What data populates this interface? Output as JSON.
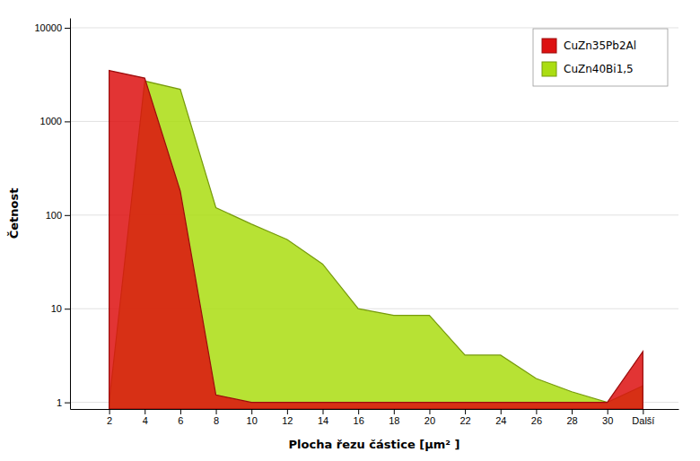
{
  "chart_data": {
    "type": "area",
    "xlabel": "Plocha řezu částice [μm² ]",
    "ylabel": "Četnost",
    "x": [
      2,
      4,
      6,
      8,
      10,
      12,
      14,
      16,
      18,
      20,
      22,
      24,
      26,
      28,
      30,
      32
    ],
    "series": [
      {
        "name": "CuZn35Pb2Al",
        "color": "#dd1111",
        "values": [
          3500,
          2900,
          180,
          1.2,
          1.0,
          1.0,
          1.0,
          1.0,
          1.0,
          1.0,
          1.0,
          1.0,
          1.0,
          1.0,
          1.0,
          3.5
        ]
      },
      {
        "name": "CuZn40Bi1,5",
        "color": "#aadd11",
        "values": [
          1.0,
          2700,
          2200,
          120,
          80,
          55,
          30,
          10,
          8.5,
          8.5,
          3.2,
          3.2,
          1.8,
          1.3,
          1.0,
          1.5
        ]
      }
    ],
    "xlim": [
      -0.2,
      34
    ],
    "xticks": [
      2,
      4,
      6,
      8,
      10,
      12,
      14,
      16,
      18,
      20,
      22,
      24,
      26,
      28,
      30,
      {
        "value": 32,
        "label": "Další"
      }
    ],
    "ylim": [
      0.85,
      12735.03
    ],
    "yticks": [
      1,
      10,
      100,
      1000,
      10000
    ],
    "log": "y",
    "grid": true,
    "legend": "upper right"
  }
}
